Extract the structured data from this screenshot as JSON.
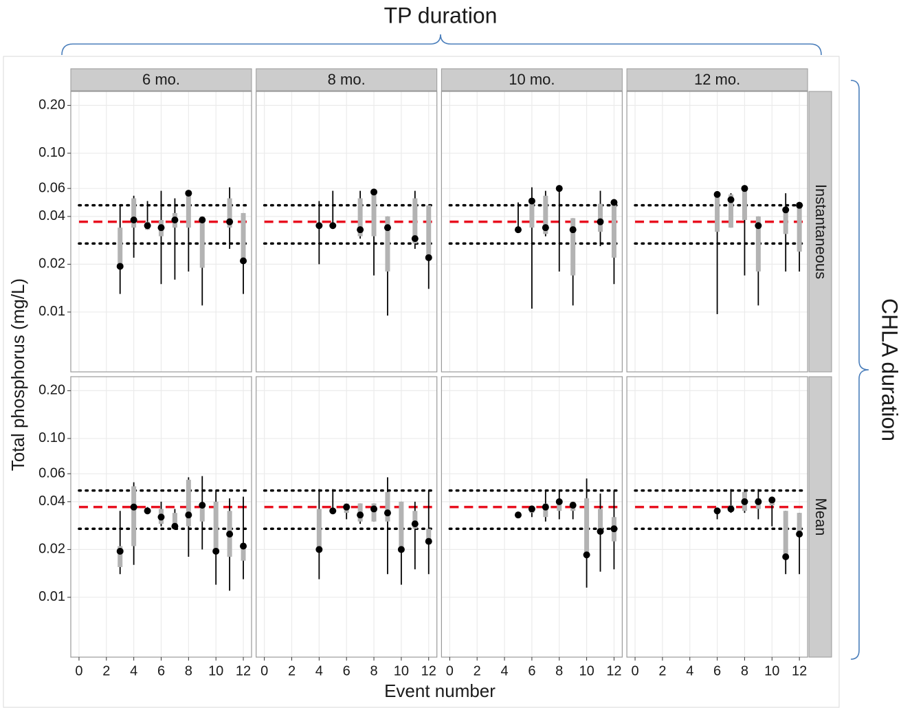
{
  "chart_data": {
    "type": "pointrange_facets",
    "title": "TP duration",
    "row_group_title": "CHLA duration",
    "x_label": "Event number",
    "y_label": "Total phosphorus (mg/L)",
    "col_labels": [
      "6 mo.",
      "8 mo.",
      "10 mo.",
      "12 mo."
    ],
    "row_labels": [
      "Instantaneous",
      "Mean"
    ],
    "xlim": [
      -0.6,
      12.6
    ],
    "xticks": [
      0,
      2,
      4,
      6,
      8,
      10,
      12
    ],
    "ylim": [
      0.0042,
      0.245
    ],
    "yticks": [
      0.01,
      0.02,
      0.04,
      0.06,
      {
        "value": 0.1,
        "label": "0.10"
      },
      {
        "value": 0.2,
        "label": "0.20"
      }
    ],
    "y_log": true,
    "grid": true,
    "point_color": "#000000",
    "inner_color": "#b3b3b3",
    "outer_color": "#000000",
    "reference_lines": [
      {
        "value": 0.047,
        "color": "#000000",
        "style": "dotted"
      },
      {
        "value": 0.037,
        "color": "#e8101f",
        "style": "dashed"
      },
      {
        "value": 0.027,
        "color": "#000000",
        "style": "dotted"
      }
    ],
    "panels": [
      {
        "x": [
          3,
          4,
          5,
          6,
          7,
          8,
          9,
          11,
          12
        ],
        "values": [
          0.0194,
          0.038,
          0.035,
          0.034,
          0.038,
          0.056,
          0.038,
          0.037,
          0.021
        ],
        "inner_low": [
          0.0194,
          0.034,
          0.033,
          0.03,
          0.034,
          0.034,
          0.019,
          0.034,
          0.021
        ],
        "inner_high": [
          0.034,
          0.052,
          0.037,
          0.038,
          0.042,
          0.058,
          0.04,
          0.052,
          0.042
        ],
        "outer_low": [
          0.013,
          0.022,
          0.033,
          0.015,
          0.016,
          0.018,
          0.011,
          0.025,
          0.013
        ],
        "outer_high": [
          0.047,
          0.054,
          0.05,
          0.058,
          0.052,
          0.058,
          0.04,
          0.061,
          0.042
        ]
      },
      {
        "x": [
          4,
          5,
          7,
          8,
          9,
          11,
          12
        ],
        "values": [
          0.035,
          0.035,
          0.033,
          0.057,
          0.034,
          0.029,
          0.022
        ],
        "inner_low": [
          0.035,
          0.035,
          0.03,
          0.03,
          0.018,
          0.027,
          0.022
        ],
        "inner_high": [
          0.035,
          0.035,
          0.052,
          0.057,
          0.04,
          0.052,
          0.047
        ],
        "outer_low": [
          0.02,
          0.035,
          0.029,
          0.017,
          0.0095,
          0.025,
          0.014
        ],
        "outer_high": [
          0.05,
          0.058,
          0.058,
          0.057,
          0.04,
          0.058,
          0.047
        ]
      },
      {
        "x": [
          5,
          6,
          7,
          8,
          9,
          11,
          12
        ],
        "values": [
          0.033,
          0.05,
          0.034,
          0.06,
          0.033,
          0.037,
          0.049
        ],
        "inner_low": [
          0.033,
          0.034,
          0.031,
          0.06,
          0.017,
          0.032,
          0.022
        ],
        "inner_high": [
          0.033,
          0.05,
          0.054,
          0.06,
          0.039,
          0.048,
          0.049
        ],
        "outer_low": [
          0.033,
          0.0105,
          0.03,
          0.018,
          0.011,
          0.026,
          0.015
        ],
        "outer_high": [
          0.049,
          0.061,
          0.058,
          0.06,
          0.039,
          0.058,
          0.049
        ]
      },
      {
        "x": [
          6,
          7,
          8,
          9,
          11,
          12
        ],
        "values": [
          0.055,
          0.051,
          0.06,
          0.035,
          0.044,
          0.047
        ],
        "inner_low": [
          0.032,
          0.034,
          0.038,
          0.018,
          0.031,
          0.024
        ],
        "inner_high": [
          0.055,
          0.055,
          0.06,
          0.04,
          0.045,
          0.047
        ],
        "outer_low": [
          0.0097,
          0.034,
          0.017,
          0.011,
          0.018,
          0.018
        ],
        "outer_high": [
          0.055,
          0.056,
          0.06,
          0.04,
          0.056,
          0.047
        ]
      },
      {
        "x": [
          3,
          4,
          5,
          6,
          7,
          8,
          9,
          10,
          11,
          12
        ],
        "values": [
          0.0195,
          0.037,
          0.035,
          0.032,
          0.028,
          0.033,
          0.038,
          0.0195,
          0.025,
          0.021
        ],
        "inner_low": [
          0.0155,
          0.021,
          0.034,
          0.029,
          0.028,
          0.028,
          0.03,
          0.0195,
          0.018,
          0.017
        ],
        "inner_high": [
          0.021,
          0.05,
          0.036,
          0.036,
          0.034,
          0.055,
          0.039,
          0.04,
          0.035,
          0.022
        ],
        "outer_low": [
          0.014,
          0.016,
          0.034,
          0.028,
          0.028,
          0.018,
          0.02,
          0.012,
          0.011,
          0.013
        ],
        "outer_high": [
          0.035,
          0.053,
          0.037,
          0.04,
          0.036,
          0.057,
          0.058,
          0.047,
          0.042,
          0.043
        ]
      },
      {
        "x": [
          4,
          5,
          6,
          7,
          8,
          9,
          10,
          11,
          12
        ],
        "values": [
          0.02,
          0.035,
          0.037,
          0.033,
          0.036,
          0.034,
          0.02,
          0.029,
          0.0225
        ],
        "inner_low": [
          0.02,
          0.035,
          0.034,
          0.03,
          0.03,
          0.03,
          0.02,
          0.027,
          0.0225
        ],
        "inner_high": [
          0.036,
          0.035,
          0.039,
          0.039,
          0.039,
          0.046,
          0.04,
          0.035,
          0.027
        ],
        "outer_low": [
          0.013,
          0.035,
          0.031,
          0.029,
          0.03,
          0.014,
          0.012,
          0.015,
          0.014
        ],
        "outer_high": [
          0.048,
          0.048,
          0.039,
          0.039,
          0.039,
          0.057,
          0.04,
          0.04,
          0.047
        ]
      },
      {
        "x": [
          5,
          6,
          7,
          8,
          9,
          10,
          11,
          12
        ],
        "values": [
          0.033,
          0.036,
          0.037,
          0.04,
          0.038,
          0.0185,
          0.026,
          0.027
        ],
        "inner_low": [
          0.033,
          0.034,
          0.032,
          0.035,
          0.035,
          0.0185,
          0.026,
          0.0225
        ],
        "inner_high": [
          0.033,
          0.037,
          0.039,
          0.041,
          0.04,
          0.042,
          0.036,
          0.032
        ],
        "outer_low": [
          0.033,
          0.032,
          0.03,
          0.031,
          0.031,
          0.0115,
          0.0145,
          0.015
        ],
        "outer_high": [
          0.034,
          0.037,
          0.047,
          0.047,
          0.04,
          0.056,
          0.045,
          0.047
        ]
      },
      {
        "x": [
          6,
          7,
          8,
          9,
          10,
          11,
          12
        ],
        "values": [
          0.035,
          0.036,
          0.04,
          0.04,
          0.041,
          0.018,
          0.025
        ],
        "inner_low": [
          0.034,
          0.035,
          0.035,
          0.036,
          0.038,
          0.018,
          0.025
        ],
        "inner_high": [
          0.036,
          0.038,
          0.046,
          0.042,
          0.042,
          0.035,
          0.034
        ],
        "outer_low": [
          0.031,
          0.034,
          0.034,
          0.031,
          0.028,
          0.014,
          0.014
        ],
        "outer_high": [
          0.036,
          0.048,
          0.048,
          0.048,
          0.042,
          0.035,
          0.034
        ]
      }
    ]
  }
}
